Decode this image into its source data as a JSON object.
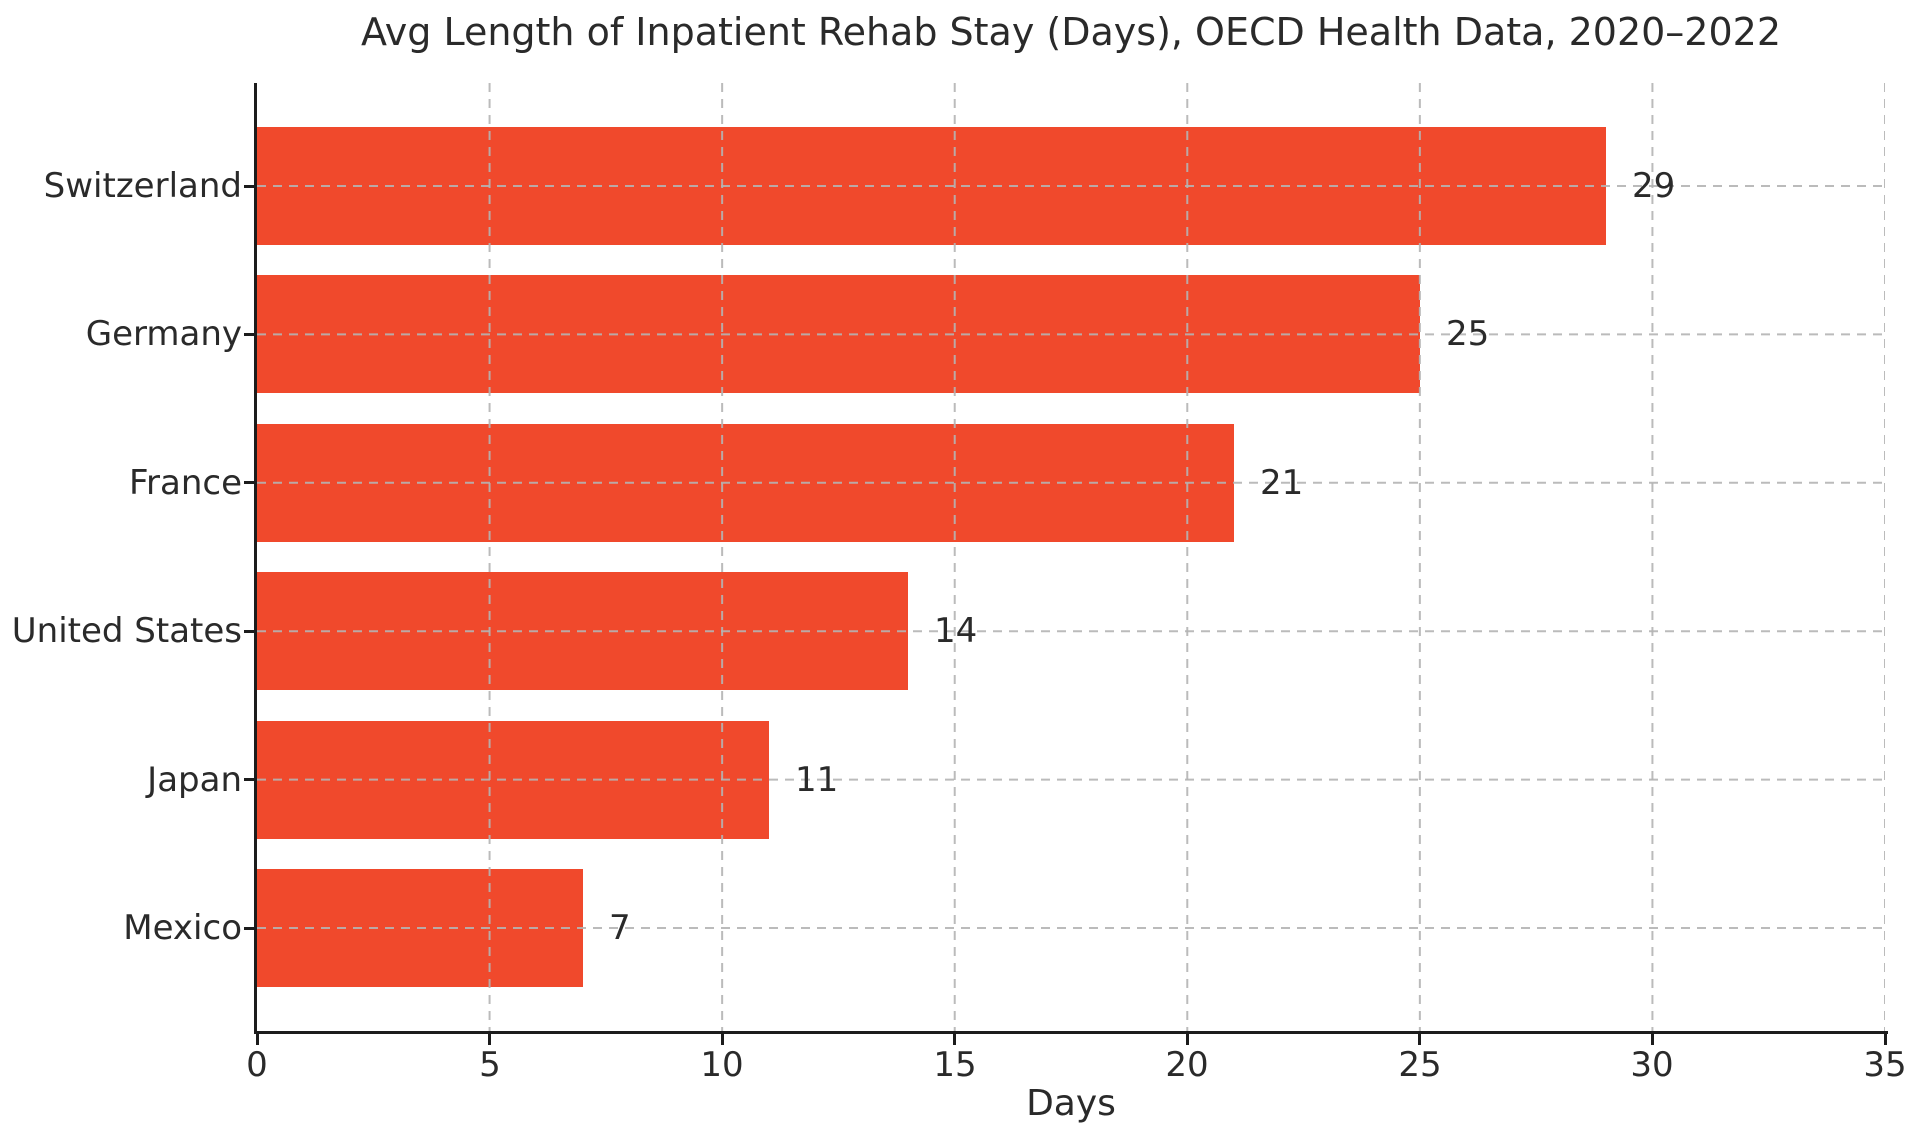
{
  "chart_data": {
    "type": "bar",
    "orientation": "horizontal",
    "title": "Avg Length of Inpatient Rehab Stay (Days), OECD Health Data, 2020–2022",
    "xlabel": "Days",
    "ylabel": "",
    "categories": [
      "Switzerland",
      "Germany",
      "France",
      "United States",
      "Japan",
      "Mexico"
    ],
    "values": [
      29,
      25,
      21,
      14,
      11,
      7
    ],
    "xlim": [
      0,
      35
    ],
    "xticks": [
      0,
      5,
      10,
      15,
      20,
      25,
      30,
      35
    ],
    "grid": "dashed, both axes, drawn over bars",
    "legend": "none",
    "colors": {
      "bar": "#F0492C",
      "grid": "#b4b4b4",
      "text": "#2a2a2a",
      "spine": "#1c1c1c",
      "background": "#ffffff"
    }
  }
}
